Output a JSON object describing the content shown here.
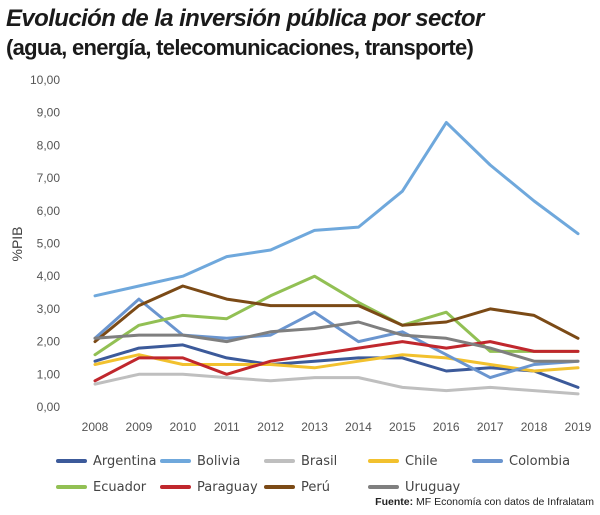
{
  "header": {
    "title_line1": "Evolución de la inversión pública por sector",
    "title_line2": "(agua, energía, telecomunicaciones, transporte)"
  },
  "chart_data": {
    "type": "line",
    "title": "Evolución de la inversión pública por sector (agua, energía, telecomunicaciones, transporte)",
    "xlabel": "",
    "ylabel": "%PIB",
    "ylim": [
      0,
      10
    ],
    "grid": false,
    "legend_position": "bottom",
    "x": [
      "2008",
      "2009",
      "2010",
      "2011",
      "2012",
      "2013",
      "2014",
      "2015",
      "2016",
      "2017",
      "2018",
      "2019"
    ],
    "y_ticks": [
      "0,00",
      "1,00",
      "2,00",
      "3,00",
      "4,00",
      "5,00",
      "6,00",
      "7,00",
      "8,00",
      "9,00",
      "10,00"
    ],
    "series": [
      {
        "name": "Argentina",
        "color": "#3c5a9a",
        "values": [
          1.4,
          1.8,
          1.9,
          1.5,
          1.3,
          1.4,
          1.5,
          1.5,
          1.1,
          1.2,
          1.1,
          0.6
        ]
      },
      {
        "name": "Bolivia",
        "color": "#6fa8dc",
        "values": [
          3.4,
          3.7,
          4.0,
          4.6,
          4.8,
          5.4,
          5.5,
          6.6,
          8.7,
          7.4,
          6.3,
          5.3
        ]
      },
      {
        "name": "Brasil",
        "color": "#bfbfbf",
        "values": [
          0.7,
          1.0,
          1.0,
          0.9,
          0.8,
          0.9,
          0.9,
          0.6,
          0.5,
          0.6,
          0.5,
          0.4
        ]
      },
      {
        "name": "Chile",
        "color": "#f2c12e",
        "values": [
          1.3,
          1.6,
          1.3,
          1.3,
          1.3,
          1.2,
          1.4,
          1.6,
          1.5,
          1.3,
          1.1,
          1.2
        ]
      },
      {
        "name": "Colombia",
        "color": "#6a95cf",
        "values": [
          2.1,
          3.3,
          2.2,
          2.1,
          2.2,
          2.9,
          2.0,
          2.3,
          1.6,
          0.9,
          1.3,
          1.4
        ]
      },
      {
        "name": "Ecuador",
        "color": "#92c054",
        "values": [
          1.6,
          2.5,
          2.8,
          2.7,
          3.4,
          4.0,
          3.2,
          2.5,
          2.9,
          1.7,
          1.7,
          1.7
        ]
      },
      {
        "name": "Paraguay",
        "color": "#c0272d",
        "values": [
          0.8,
          1.5,
          1.5,
          1.0,
          1.4,
          1.6,
          1.8,
          2.0,
          1.8,
          2.0,
          1.7,
          1.7
        ]
      },
      {
        "name": "Perú",
        "color": "#7b4a16",
        "values": [
          2.0,
          3.1,
          3.7,
          3.3,
          3.1,
          3.1,
          3.1,
          2.5,
          2.6,
          3.0,
          2.8,
          2.1
        ]
      },
      {
        "name": "Uruguay",
        "color": "#7f7f7f",
        "values": [
          2.1,
          2.2,
          2.2,
          2.0,
          2.3,
          2.4,
          2.6,
          2.2,
          2.1,
          1.8,
          1.4,
          1.4
        ]
      }
    ]
  },
  "footer": {
    "source_label": "Fuente:",
    "source_text": " MF Economía con datos de Infralatam"
  }
}
